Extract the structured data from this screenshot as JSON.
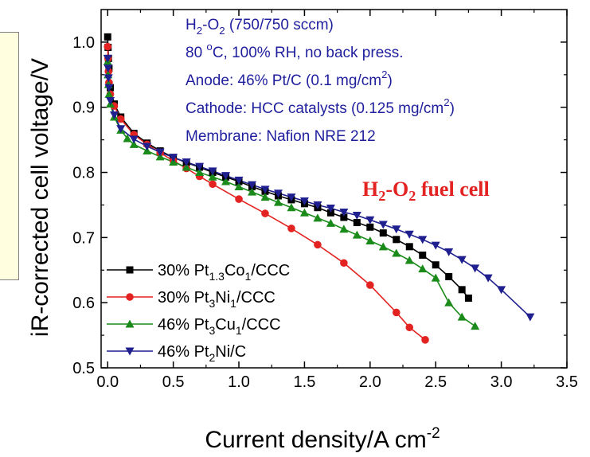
{
  "chart_data": {
    "type": "line",
    "xlabel": "Current density/A cm",
    "xlabel_sup": "-2",
    "ylabel": "iR-corrected cell voltage/V",
    "xlim": [
      -0.05,
      3.5
    ],
    "ylim": [
      0.5,
      1.05
    ],
    "x_ticks": [
      "0.0",
      "0.5",
      "1.0",
      "1.5",
      "2.0",
      "2.5",
      "3.0",
      "3.5"
    ],
    "y_ticks": [
      "0.5",
      "0.6",
      "0.7",
      "0.8",
      "0.9",
      "1.0"
    ],
    "grid": false,
    "legend_position": "bottom-left",
    "annotation": {
      "parts": [
        {
          "t": "H"
        },
        {
          "t": "2",
          "sub": true
        },
        {
          "t": "-O"
        },
        {
          "t": "2",
          "sub": true
        },
        {
          "t": " fuel cell"
        }
      ]
    },
    "info_lines": [
      {
        "parts": [
          {
            "t": "H"
          },
          {
            "t": "2",
            "sub": true
          },
          {
            "t": "-O"
          },
          {
            "t": "2",
            "sub": true
          },
          {
            "t": " (750/750 sccm)"
          }
        ]
      },
      {
        "parts": [
          {
            "t": "80 "
          },
          {
            "t": "o",
            "sup": true
          },
          {
            "t": "C, 100% RH, no back press."
          }
        ]
      },
      {
        "parts": [
          {
            "t": "Anode: 46% Pt/C (0.1 mg/cm"
          },
          {
            "t": "2",
            "sup": true
          },
          {
            "t": ")"
          }
        ]
      },
      {
        "parts": [
          {
            "t": "Cathode: HCC catalysts (0.125 mg/cm"
          },
          {
            "t": "2",
            "sup": true
          },
          {
            "t": ")"
          }
        ]
      },
      {
        "parts": [
          {
            "t": "Membrane: Nafion NRE 212"
          }
        ]
      }
    ],
    "series": [
      {
        "name": "30% Pt1.3Co1/CCC",
        "label_parts": [
          {
            "t": "30% Pt"
          },
          {
            "t": "1.3",
            "sub": true
          },
          {
            "t": "Co"
          },
          {
            "t": "1",
            "sub": true
          },
          {
            "t": "/CCC"
          }
        ],
        "color": "#000000",
        "marker": "square",
        "x": [
          0.0,
          0.003,
          0.006,
          0.01,
          0.02,
          0.05,
          0.1,
          0.2,
          0.3,
          0.4,
          0.5,
          0.6,
          0.7,
          0.8,
          0.9,
          1.0,
          1.1,
          1.2,
          1.3,
          1.4,
          1.5,
          1.6,
          1.7,
          1.8,
          1.9,
          2.0,
          2.1,
          2.2,
          2.3,
          2.4,
          2.5,
          2.6,
          2.7,
          2.75
        ],
        "y": [
          1.008,
          0.992,
          0.975,
          0.96,
          0.93,
          0.905,
          0.885,
          0.86,
          0.845,
          0.833,
          0.823,
          0.815,
          0.808,
          0.8,
          0.793,
          0.786,
          0.778,
          0.771,
          0.764,
          0.758,
          0.752,
          0.746,
          0.738,
          0.731,
          0.723,
          0.716,
          0.707,
          0.697,
          0.686,
          0.673,
          0.658,
          0.64,
          0.62,
          0.607
        ]
      },
      {
        "name": "30% Pt3Ni1/CCC",
        "label_parts": [
          {
            "t": "30% Pt"
          },
          {
            "t": "3",
            "sub": true
          },
          {
            "t": "Ni"
          },
          {
            "t": "1",
            "sub": true
          },
          {
            "t": "/CCC"
          }
        ],
        "color": "#e32222",
        "marker": "circle",
        "x": [
          0.0,
          0.003,
          0.006,
          0.01,
          0.02,
          0.05,
          0.1,
          0.2,
          0.3,
          0.4,
          0.5,
          0.6,
          0.7,
          0.8,
          1.0,
          1.2,
          1.4,
          1.6,
          1.8,
          2.0,
          2.2,
          2.3,
          2.42
        ],
        "y": [
          0.993,
          0.975,
          0.955,
          0.938,
          0.92,
          0.902,
          0.882,
          0.858,
          0.843,
          0.83,
          0.818,
          0.806,
          0.794,
          0.782,
          0.759,
          0.737,
          0.714,
          0.689,
          0.661,
          0.627,
          0.585,
          0.562,
          0.543
        ]
      },
      {
        "name": "46% Pt3Cu1/CCC",
        "label_parts": [
          {
            "t": "46% Pt"
          },
          {
            "t": "3",
            "sub": true
          },
          {
            "t": "Cu"
          },
          {
            "t": "1",
            "sub": true
          },
          {
            "t": "/CCC"
          }
        ],
        "color": "#1a8a1a",
        "marker": "triangle-up",
        "x": [
          0.0,
          0.003,
          0.006,
          0.01,
          0.02,
          0.05,
          0.1,
          0.15,
          0.2,
          0.3,
          0.4,
          0.5,
          0.6,
          0.7,
          0.8,
          0.9,
          1.0,
          1.1,
          1.2,
          1.3,
          1.4,
          1.5,
          1.6,
          1.7,
          1.8,
          1.9,
          2.0,
          2.1,
          2.2,
          2.3,
          2.4,
          2.5,
          2.6,
          2.7,
          2.8
        ],
        "y": [
          0.97,
          0.95,
          0.935,
          0.92,
          0.905,
          0.885,
          0.865,
          0.852,
          0.843,
          0.833,
          0.824,
          0.816,
          0.808,
          0.8,
          0.793,
          0.786,
          0.778,
          0.77,
          0.762,
          0.754,
          0.746,
          0.738,
          0.73,
          0.722,
          0.713,
          0.704,
          0.695,
          0.686,
          0.676,
          0.665,
          0.652,
          0.638,
          0.6,
          0.578,
          0.564
        ]
      },
      {
        "name": "46% Pt2Ni/C",
        "label_parts": [
          {
            "t": "46% Pt"
          },
          {
            "t": "2",
            "sub": true
          },
          {
            "t": "Ni/C"
          }
        ],
        "color": "#1f1f8f",
        "marker": "triangle-down",
        "x": [
          0.0,
          0.003,
          0.006,
          0.01,
          0.02,
          0.05,
          0.1,
          0.2,
          0.3,
          0.4,
          0.5,
          0.6,
          0.7,
          0.8,
          0.9,
          1.0,
          1.1,
          1.2,
          1.3,
          1.4,
          1.5,
          1.6,
          1.7,
          1.8,
          1.9,
          2.0,
          2.1,
          2.2,
          2.3,
          2.4,
          2.5,
          2.6,
          2.7,
          2.8,
          2.9,
          3.0,
          3.22
        ],
        "y": [
          0.975,
          0.96,
          0.945,
          0.93,
          0.91,
          0.888,
          0.867,
          0.851,
          0.84,
          0.831,
          0.823,
          0.816,
          0.809,
          0.802,
          0.795,
          0.788,
          0.781,
          0.774,
          0.768,
          0.762,
          0.756,
          0.75,
          0.745,
          0.739,
          0.734,
          0.727,
          0.72,
          0.713,
          0.705,
          0.697,
          0.688,
          0.678,
          0.666,
          0.653,
          0.638,
          0.62,
          0.578
        ]
      }
    ]
  }
}
